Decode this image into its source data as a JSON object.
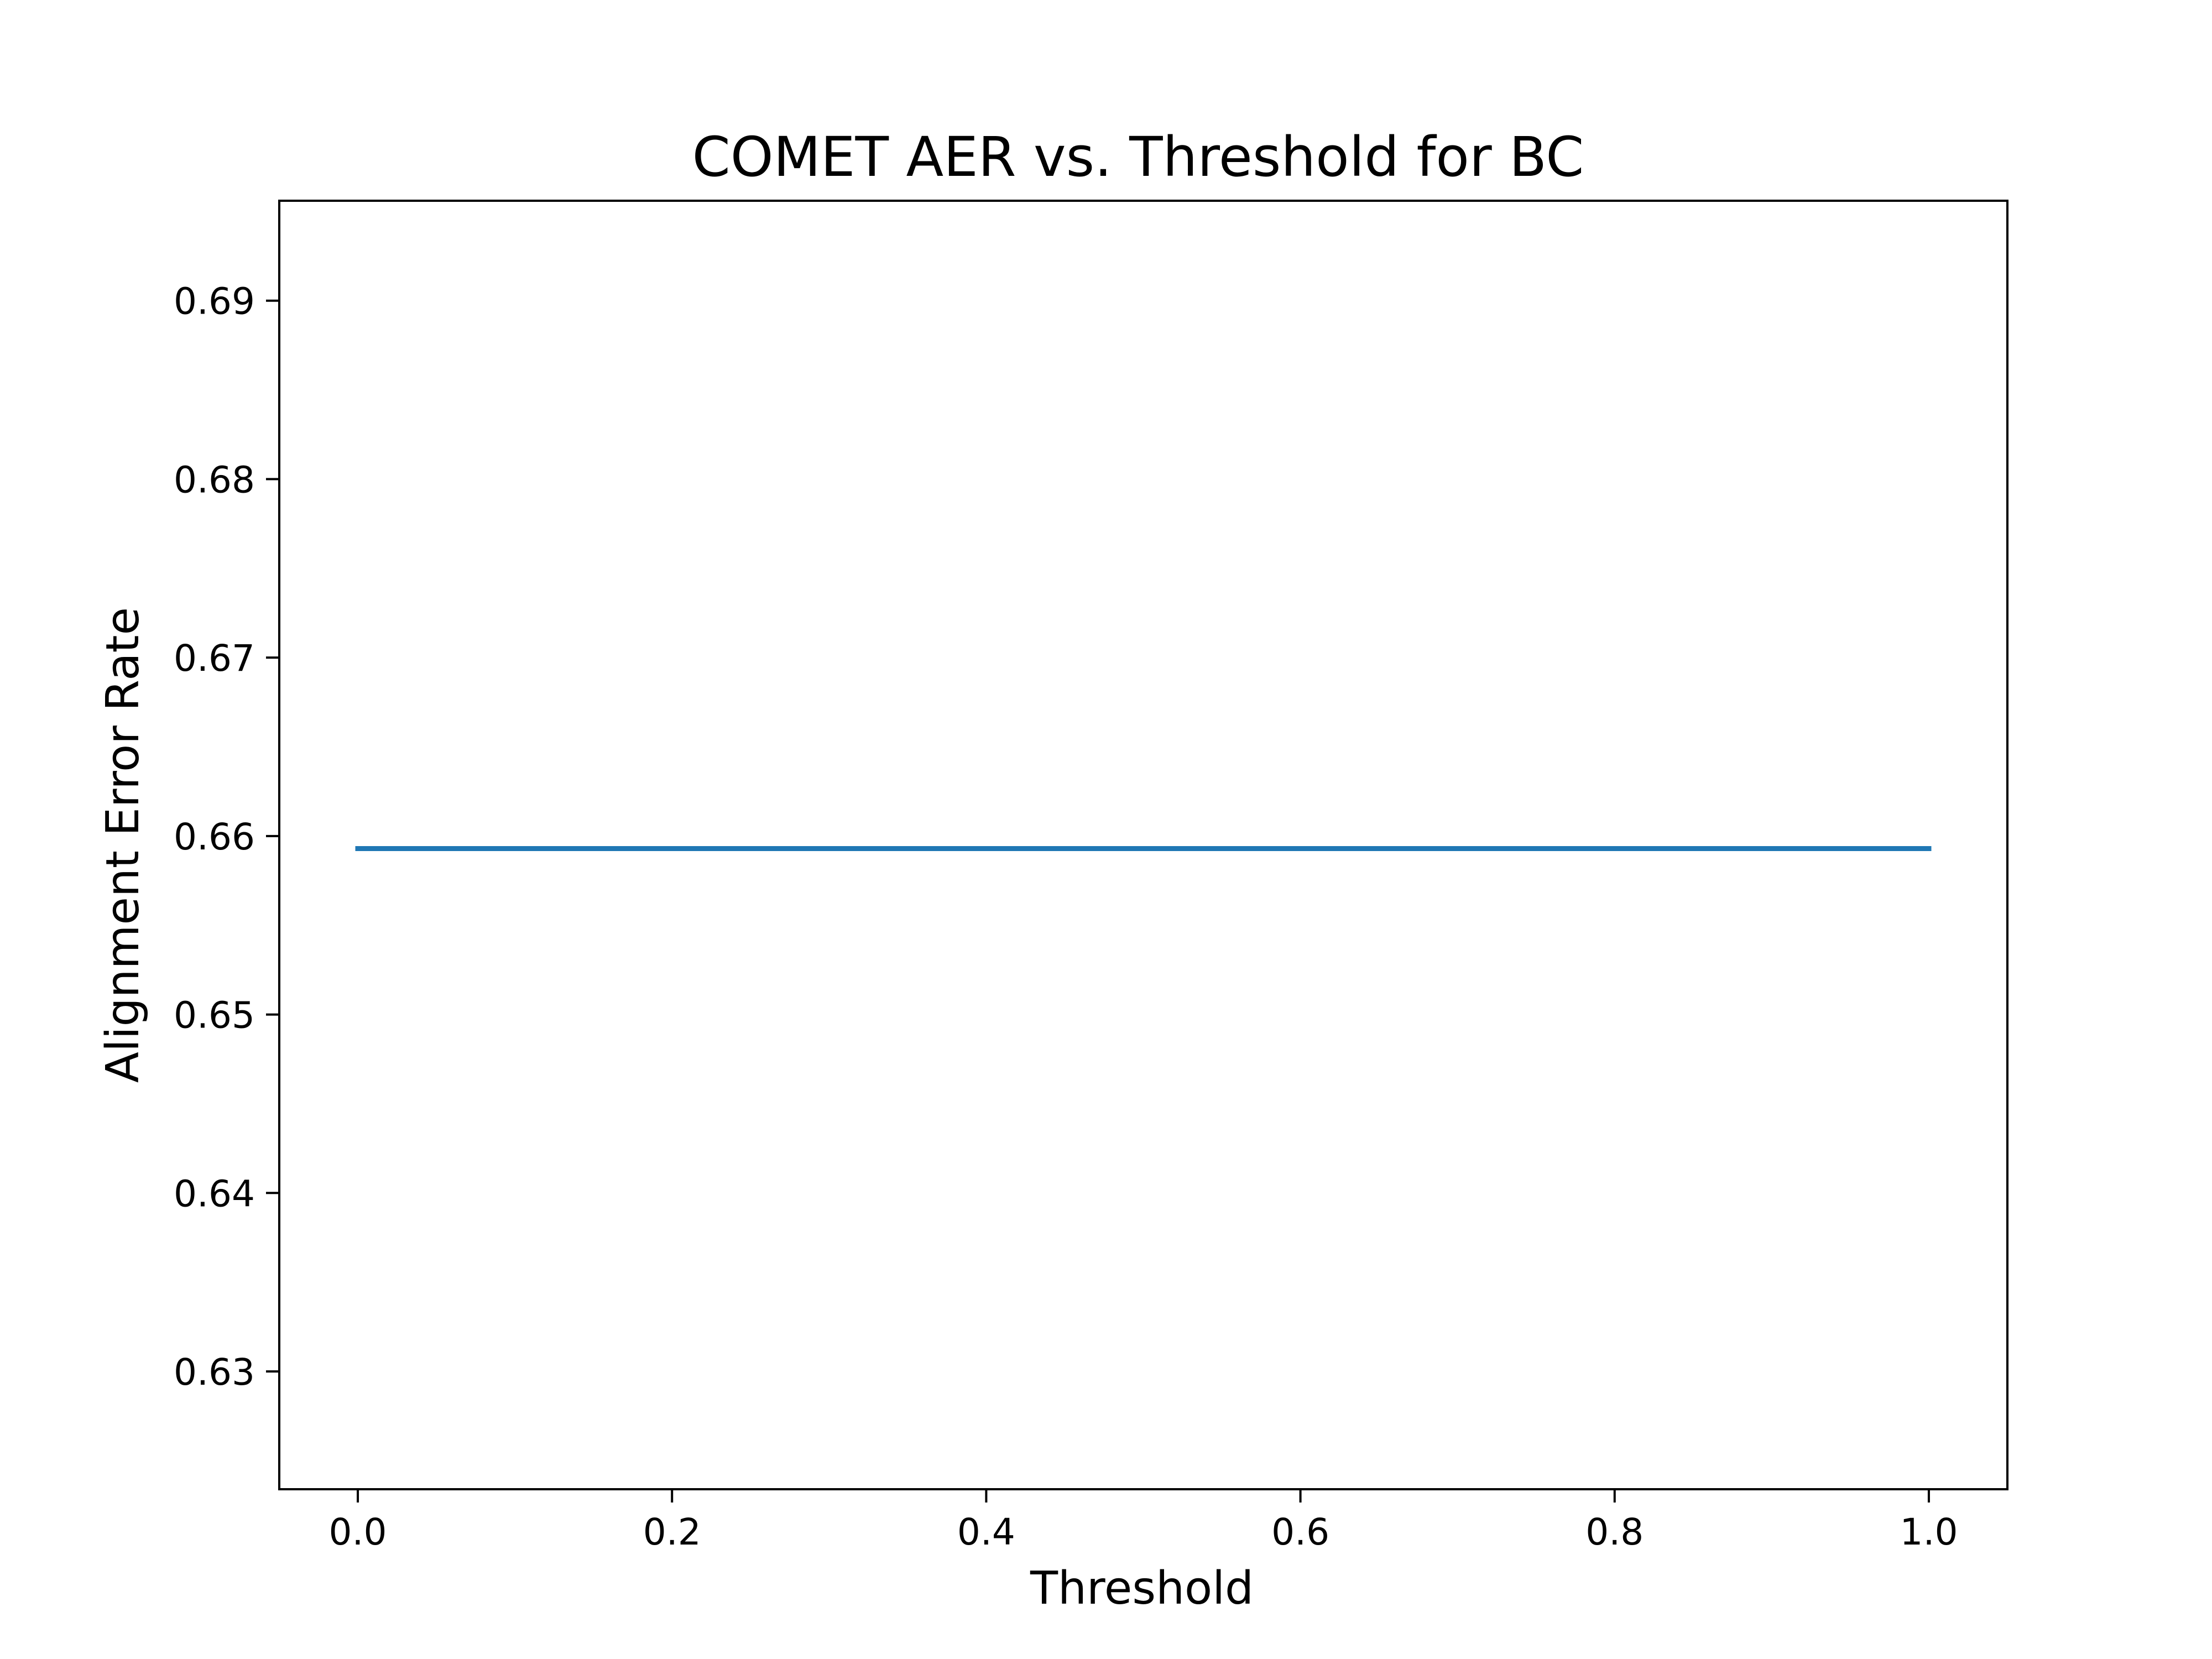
{
  "chart_data": {
    "type": "line",
    "title": "COMET AER vs. Threshold for BC",
    "xlabel": "Threshold",
    "ylabel": "Alignment Error Rate",
    "xlim": [
      -0.05,
      1.05
    ],
    "ylim": [
      0.6234,
      0.6956
    ],
    "xticks": [
      0.0,
      0.2,
      0.4,
      0.6,
      0.8,
      1.0
    ],
    "xtick_labels": [
      "0.0",
      "0.2",
      "0.4",
      "0.6",
      "0.8",
      "1.0"
    ],
    "yticks": [
      0.63,
      0.64,
      0.65,
      0.66,
      0.67,
      0.68,
      0.69
    ],
    "ytick_labels": [
      "0.63",
      "0.64",
      "0.65",
      "0.66",
      "0.67",
      "0.68",
      "0.69"
    ],
    "grid": false,
    "series": [
      {
        "color": "#1f77b4",
        "x": [
          0.0,
          0.1,
          0.2,
          0.3,
          0.4,
          0.5,
          0.6,
          0.7,
          0.8,
          0.9,
          1.0
        ],
        "y": [
          0.6593,
          0.6593,
          0.6593,
          0.6593,
          0.6593,
          0.6593,
          0.6593,
          0.6593,
          0.6593,
          0.6593,
          0.6593
        ]
      }
    ]
  }
}
